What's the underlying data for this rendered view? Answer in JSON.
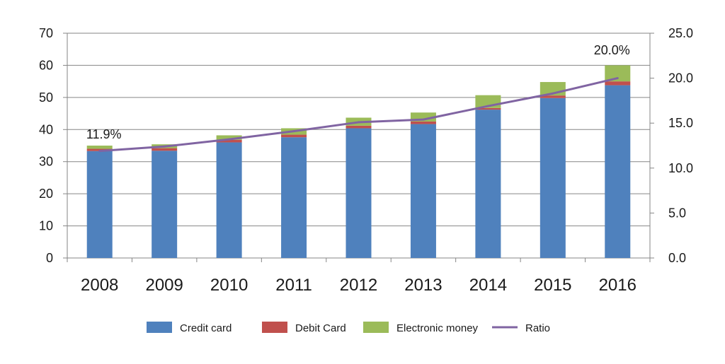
{
  "chart_data": {
    "type": "bar",
    "stacked": true,
    "categories": [
      "2008",
      "2009",
      "2010",
      "2011",
      "2012",
      "2013",
      "2014",
      "2015",
      "2016"
    ],
    "series": [
      {
        "name": "Credit card",
        "type": "bar",
        "axis": "left",
        "color": "#4F81BD",
        "values": [
          33.3,
          33.4,
          36.0,
          37.6,
          40.4,
          41.7,
          46.2,
          49.8,
          53.8
        ]
      },
      {
        "name": "Debit Card",
        "type": "bar",
        "axis": "left",
        "color": "#C0504D",
        "values": [
          0.7,
          0.8,
          0.8,
          0.8,
          0.8,
          0.8,
          0.5,
          0.8,
          1.2
        ]
      },
      {
        "name": "Electronic money",
        "type": "bar",
        "axis": "left",
        "color": "#9BBB59",
        "values": [
          1.0,
          1.2,
          1.4,
          2.0,
          2.5,
          2.8,
          4.0,
          4.2,
          5.0
        ]
      },
      {
        "name": "Ratio",
        "type": "line",
        "axis": "right",
        "color": "#8064A2",
        "values": [
          11.9,
          12.4,
          13.2,
          14.1,
          15.1,
          15.4,
          16.9,
          18.3,
          20.0
        ]
      }
    ],
    "left_axis": {
      "min": 0,
      "max": 70,
      "step": 10,
      "tick_labels": [
        "0",
        "10",
        "20",
        "30",
        "40",
        "50",
        "60",
        "70"
      ]
    },
    "right_axis": {
      "min": 0,
      "max": 25,
      "step": 5,
      "tick_labels": [
        "0.0",
        "5.0",
        "10.0",
        "15.0",
        "20.0",
        "25.0"
      ]
    },
    "annotations": [
      {
        "category": "2008",
        "text": "11.9%"
      },
      {
        "category": "2016",
        "text": "20.0%"
      }
    ],
    "grid": true,
    "legend_position": "bottom"
  }
}
